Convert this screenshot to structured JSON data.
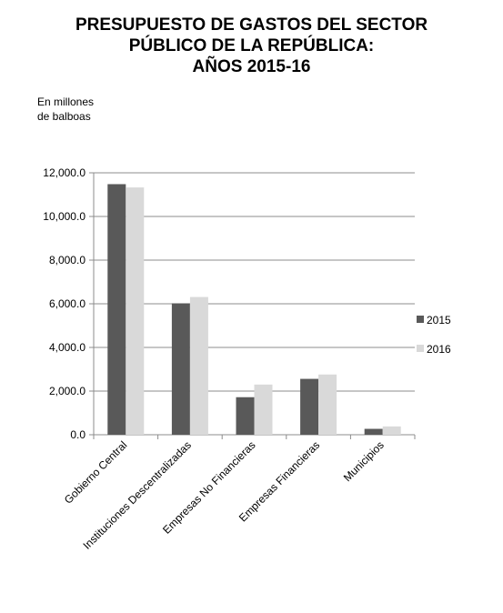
{
  "chart_data": {
    "type": "bar",
    "title": [
      "PRESUPUESTO DE GASTOS DEL SECTOR",
      "PÚBLICO DE LA REPÚBLICA:",
      "AÑOS 2015-16"
    ],
    "ylabel": [
      "En millones",
      "de balboas"
    ],
    "xlabel": "",
    "categories": [
      "Gobierno Central",
      "Instituciones Descentralizadas",
      "Empresas No Financieras",
      "Empresas Financieras",
      "Municipios"
    ],
    "series": [
      {
        "name": "2015",
        "color": "#595959",
        "values": [
          11480,
          6020,
          1720,
          2560,
          270
        ]
      },
      {
        "name": "2016",
        "color": "#d9d9d9",
        "values": [
          11330,
          6310,
          2300,
          2760,
          380
        ]
      }
    ],
    "ylim": [
      0,
      12000
    ],
    "yticks": [
      0,
      2000,
      4000,
      6000,
      8000,
      10000,
      12000
    ],
    "ytick_labels": [
      "0.0",
      "2,000.0",
      "4,000.0",
      "6,000.0",
      "8,000.0",
      "10,000.0",
      "12,000.0"
    ],
    "grid": true,
    "legend_position": "right"
  }
}
